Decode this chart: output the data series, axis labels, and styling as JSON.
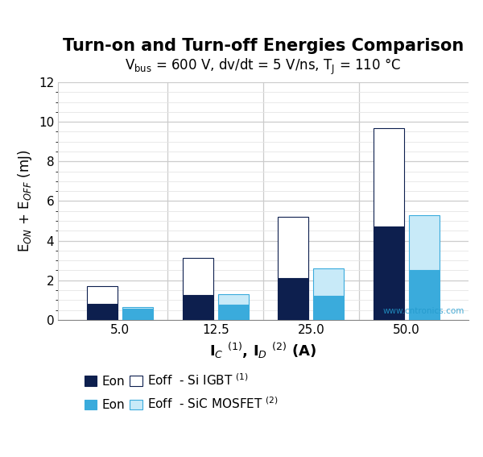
{
  "title": "Turn-on and Turn-off Energies Comparison",
  "subtitle_normal": "V",
  "subtitle_sub": "bus",
  "subtitle_rest": " = 600 V, dv/dt = 5 V/ns, T",
  "subtitle_sub2": "J",
  "subtitle_end": " = 110 °C",
  "xlabel_parts": [
    "I",
    "C",
    "(1)",
    ", I",
    "D",
    "(2)",
    " (A)"
  ],
  "ylabel": "E$_\\mathregular{ON}$ + E$_\\mathregular{OFF}$ (mJ)",
  "cat_labels": [
    "5.0",
    "12.5",
    "25.0",
    "50.0"
  ],
  "igbt_eon": [
    0.8,
    1.25,
    2.1,
    4.7
  ],
  "igbt_eoff": [
    0.9,
    1.9,
    3.1,
    5.0
  ],
  "sic_eon": [
    0.55,
    0.75,
    1.2,
    2.5
  ],
  "sic_eoff": [
    0.1,
    0.55,
    1.4,
    2.8
  ],
  "igbt_eon_color": "#0d1f4e",
  "igbt_eoff_color": "#ffffff",
  "igbt_edge_color": "#0d1f4e",
  "sic_eon_color": "#3aabdc",
  "sic_eoff_color": "#c8eaf8",
  "sic_edge_color": "#3aabdc",
  "bar_width": 0.32,
  "bar_gap": 0.05,
  "ylim": [
    0,
    12
  ],
  "yticks": [
    0,
    2,
    4,
    6,
    8,
    10,
    12
  ],
  "grid_color": "#cccccc",
  "minor_grid_color": "#e5e5e5",
  "title_fontsize": 15,
  "subtitle_fontsize": 12,
  "label_fontsize": 12,
  "tick_fontsize": 11,
  "legend_fontsize": 11
}
